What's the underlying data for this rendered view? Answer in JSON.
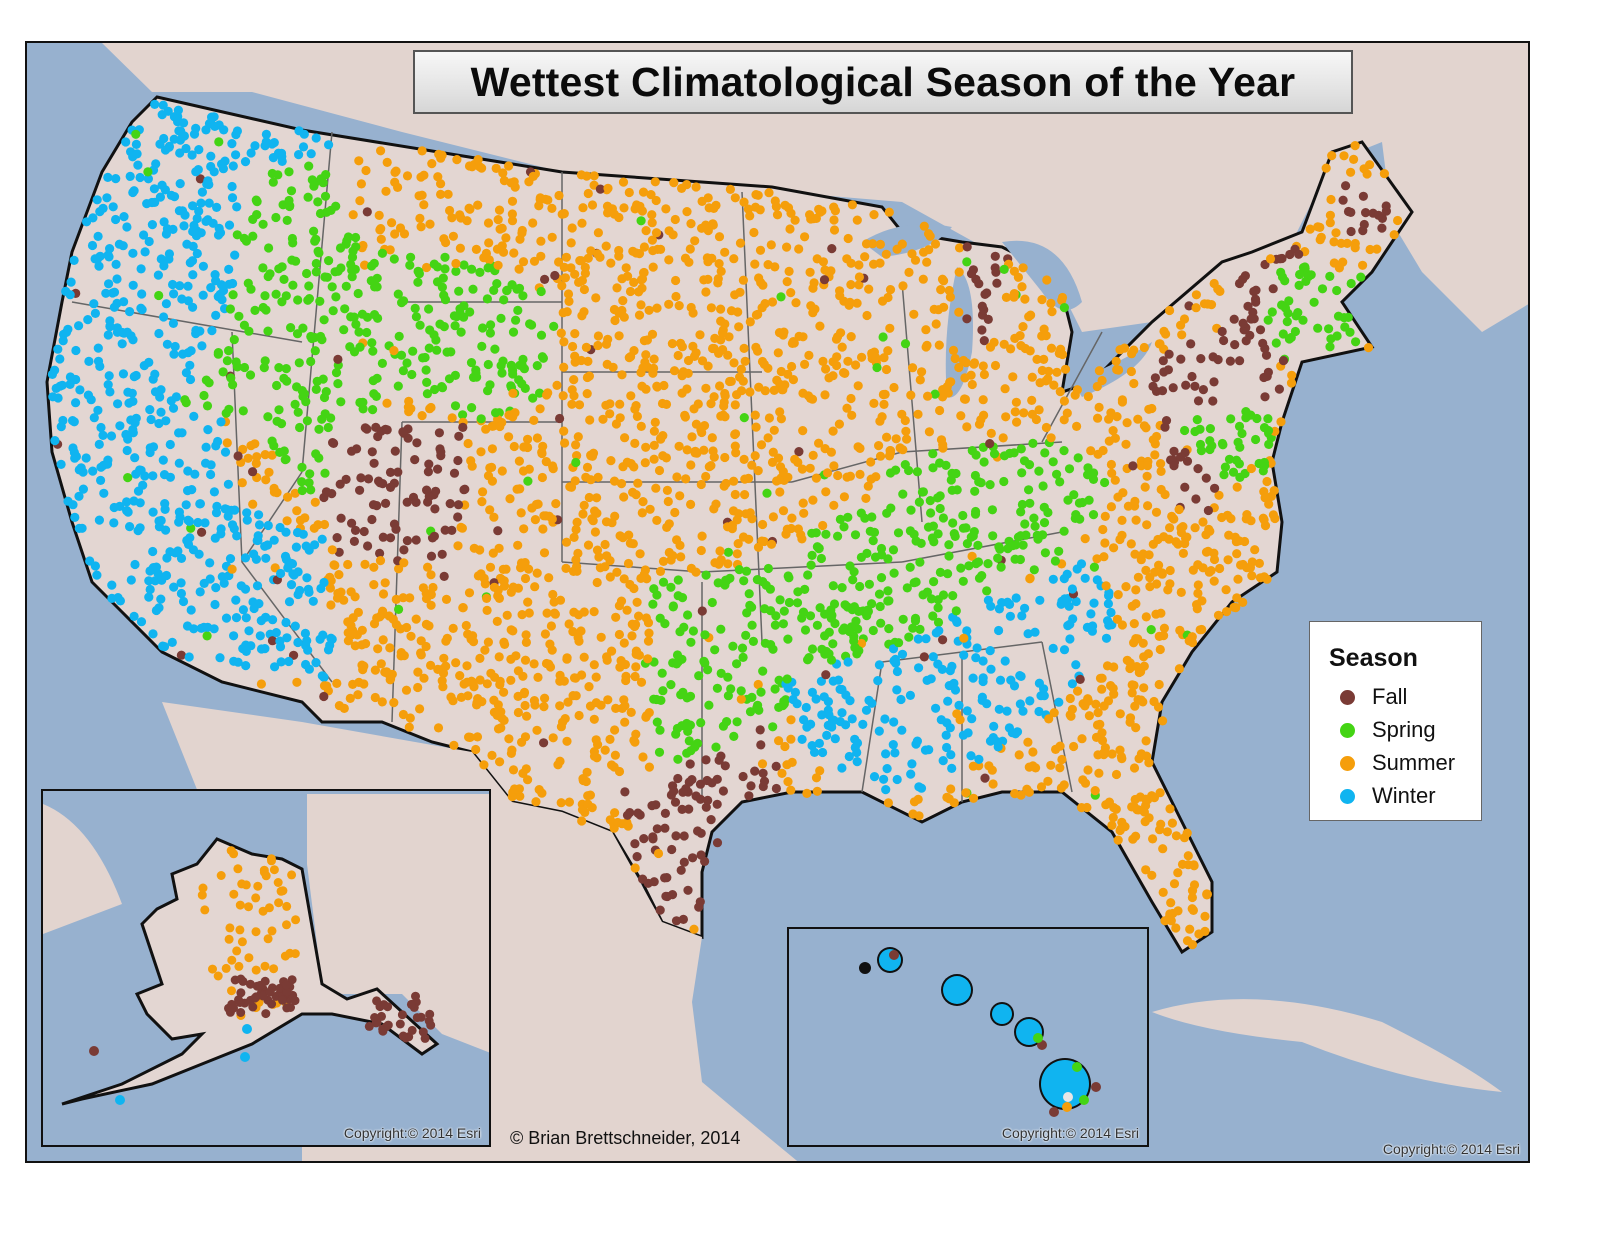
{
  "map": {
    "title": "Wettest Climatological Season of the Year",
    "legend": {
      "title": "Season",
      "items": [
        {
          "label": "Fall",
          "color": "#7a3b35"
        },
        {
          "label": "Spring",
          "color": "#44d414"
        },
        {
          "label": "Summer",
          "color": "#f59e0b"
        },
        {
          "label": "Winter",
          "color": "#10b4f0"
        }
      ]
    },
    "author_credit": "© Brian Brettschneider, 2014",
    "copyright_main": "Copyright:© 2014 Esri",
    "copyright_alaska": "Copyright:© 2014 Esri",
    "copyright_hawaii": "Copyright:© 2014 Esri",
    "insets": [
      "Alaska",
      "Hawaii"
    ],
    "colors": {
      "ocean": "#97b1cf",
      "land": "#e3d6d2",
      "border": "#111111",
      "state_line": "#666666"
    },
    "regions": [
      {
        "season": "Winter",
        "description": "Pacific coast & Great Basin west",
        "area": "WA, OR, CA, NV"
      },
      {
        "season": "Spring",
        "description": "Northern Rockies",
        "area": "ID, MT, WY, UT"
      },
      {
        "season": "Fall",
        "description": "Colorado Plateau / Western Slope",
        "area": "CO, UT"
      },
      {
        "season": "Summer",
        "description": "Great Plains, Midwest, Southwest, Southeast",
        "area": "Central US"
      },
      {
        "season": "Spring",
        "description": "Ozarks to Ohio Valley",
        "area": "OK, AR, MO, KY, TN, OH"
      },
      {
        "season": "Winter",
        "description": "Deep South & southern Appalachians",
        "area": "MS, AL, TN, GA"
      },
      {
        "season": "Fall",
        "description": "East Texas & Louisiana, NE coast, lee of Great Lakes",
        "area": "TX, LA, NY, MI, ME"
      },
      {
        "season": "Spring",
        "description": "Southern New England",
        "area": "MA, CT, RI"
      }
    ]
  }
}
